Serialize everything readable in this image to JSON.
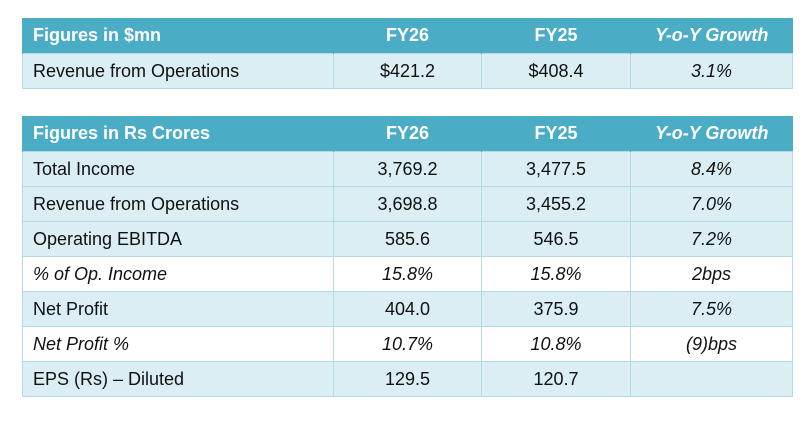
{
  "table_usd": {
    "headers": [
      "Figures in $mn",
      "FY26",
      "FY25",
      "Y-o-Y Growth"
    ],
    "rows": [
      {
        "label": "Revenue from Operations",
        "fy26": "$421.2",
        "fy25": "$408.4",
        "growth": "3.1%",
        "italic": false
      }
    ]
  },
  "table_inr": {
    "headers": [
      "Figures in Rs Crores",
      "FY26",
      "FY25",
      "Y-o-Y Growth"
    ],
    "rows": [
      {
        "label": "Total Income",
        "fy26": "3,769.2",
        "fy25": "3,477.5",
        "growth": "8.4%",
        "italic": false
      },
      {
        "label": "Revenue from Operations",
        "fy26": "3,698.8",
        "fy25": "3,455.2",
        "growth": "7.0%",
        "italic": false
      },
      {
        "label": "Operating EBITDA",
        "fy26": "585.6",
        "fy25": "546.5",
        "growth": "7.2%",
        "italic": false
      },
      {
        "label": "% of Op. Income",
        "fy26": "15.8%",
        "fy25": "15.8%",
        "growth": "2bps",
        "italic": true
      },
      {
        "label": "Net Profit",
        "fy26": "404.0",
        "fy25": "375.9",
        "growth": "7.5%",
        "italic": false
      },
      {
        "label": "Net Profit %",
        "fy26": "10.7%",
        "fy25": "10.8%",
        "growth": "(9)bps",
        "italic": true
      },
      {
        "label": "EPS (Rs) – Diluted",
        "fy26": "129.5",
        "fy25": "120.7",
        "growth": "",
        "italic": false
      }
    ]
  },
  "colors": {
    "header": "#4bacc6",
    "row_shade": "#daeef3"
  }
}
